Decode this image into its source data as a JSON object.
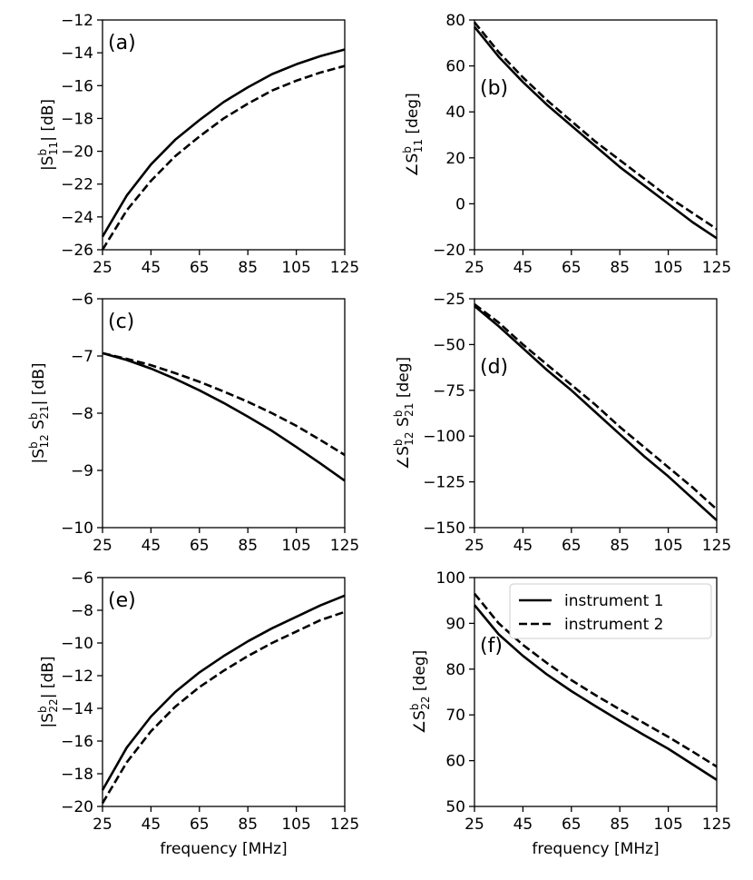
{
  "figure": {
    "background": "#ffffff",
    "line_color": "#000000"
  },
  "legend": {
    "location": "upper-right of panel (f)",
    "entries": [
      {
        "label": "instrument 1",
        "style": "solid"
      },
      {
        "label": "instrument 2",
        "style": "dashed"
      }
    ]
  },
  "chart_data": [
    {
      "type": "line",
      "panel_label": "(a)",
      "ylabel": "|S^b_11| [dB]",
      "xlabel": "",
      "xlim": [
        25,
        125
      ],
      "ylim": [
        -26,
        -12
      ],
      "xticks": [
        25,
        45,
        65,
        85,
        105,
        125
      ],
      "yticks": [
        -26,
        -24,
        -22,
        -20,
        -18,
        -16,
        -14,
        -12
      ],
      "ytick_labels": [
        "−26",
        "−24",
        "−22",
        "−20",
        "−18",
        "−16",
        "−14",
        "−12"
      ],
      "label_pos": "top-left",
      "x": [
        25,
        35,
        45,
        55,
        65,
        75,
        85,
        95,
        105,
        115,
        125
      ],
      "series": [
        {
          "name": "instrument 1",
          "style": "solid",
          "values": [
            -25.2,
            -22.7,
            -20.8,
            -19.3,
            -18.1,
            -17.0,
            -16.1,
            -15.3,
            -14.7,
            -14.2,
            -13.8
          ]
        },
        {
          "name": "instrument 2",
          "style": "dashed",
          "values": [
            -26.0,
            -23.6,
            -21.8,
            -20.3,
            -19.1,
            -18.0,
            -17.1,
            -16.3,
            -15.7,
            -15.2,
            -14.8
          ]
        }
      ]
    },
    {
      "type": "line",
      "panel_label": "(b)",
      "ylabel": "∠S^b_11 [deg]",
      "xlabel": "",
      "xlim": [
        25,
        125
      ],
      "ylim": [
        -20,
        80
      ],
      "xticks": [
        25,
        45,
        65,
        85,
        105,
        125
      ],
      "yticks": [
        -20,
        0,
        20,
        40,
        60,
        80
      ],
      "ytick_labels": [
        "−20",
        "0",
        "20",
        "40",
        "60",
        "80"
      ],
      "label_pos": "mid-left",
      "x": [
        25,
        35,
        45,
        55,
        65,
        75,
        85,
        95,
        105,
        115,
        125
      ],
      "series": [
        {
          "name": "instrument 1",
          "style": "solid",
          "values": [
            77,
            64,
            53,
            43,
            34,
            25,
            16,
            8,
            0,
            -8,
            -15
          ]
        },
        {
          "name": "instrument 2",
          "style": "dashed",
          "values": [
            79,
            66,
            55,
            45,
            36,
            27,
            19,
            11,
            3,
            -4,
            -11
          ]
        }
      ]
    },
    {
      "type": "line",
      "panel_label": "(c)",
      "ylabel": "|S^b_12 S^b_21| [dB]",
      "xlabel": "",
      "xlim": [
        25,
        125
      ],
      "ylim": [
        -10,
        -6
      ],
      "xticks": [
        25,
        45,
        65,
        85,
        105,
        125
      ],
      "yticks": [
        -10,
        -9,
        -8,
        -7,
        -6
      ],
      "ytick_labels": [
        "−10",
        "−9",
        "−8",
        "−7",
        "−6"
      ],
      "label_pos": "top-left",
      "x": [
        25,
        35,
        45,
        55,
        65,
        75,
        85,
        95,
        105,
        115,
        125
      ],
      "series": [
        {
          "name": "instrument 1",
          "style": "solid",
          "values": [
            -6.95,
            -7.07,
            -7.22,
            -7.4,
            -7.6,
            -7.82,
            -8.06,
            -8.31,
            -8.59,
            -8.88,
            -9.18
          ]
        },
        {
          "name": "instrument 2",
          "style": "dashed",
          "values": [
            -6.95,
            -7.05,
            -7.16,
            -7.3,
            -7.45,
            -7.62,
            -7.8,
            -8.0,
            -8.22,
            -8.47,
            -8.73
          ]
        }
      ]
    },
    {
      "type": "line",
      "panel_label": "(d)",
      "ylabel": "∠S^b_12 S^b_21 [deg]",
      "xlabel": "",
      "xlim": [
        25,
        125
      ],
      "ylim": [
        -150,
        -25
      ],
      "xticks": [
        25,
        45,
        65,
        85,
        105,
        125
      ],
      "yticks": [
        -150,
        -125,
        -100,
        -75,
        -50,
        -25
      ],
      "ytick_labels": [
        "−150",
        "−125",
        "−100",
        "−75",
        "−50",
        "−25"
      ],
      "label_pos": "mid-left",
      "x": [
        25,
        35,
        45,
        55,
        65,
        75,
        85,
        95,
        105,
        115,
        125
      ],
      "series": [
        {
          "name": "instrument 1",
          "style": "solid",
          "values": [
            -29,
            -40,
            -52,
            -64,
            -75,
            -87,
            -99,
            -111,
            -122,
            -134,
            -146
          ]
        },
        {
          "name": "instrument 2",
          "style": "dashed",
          "values": [
            -28,
            -38,
            -50,
            -61,
            -72,
            -83,
            -95,
            -106,
            -117,
            -128,
            -140
          ]
        }
      ]
    },
    {
      "type": "line",
      "panel_label": "(e)",
      "ylabel": "|S^b_22| [dB]",
      "xlabel": "frequency [MHz]",
      "xlim": [
        25,
        125
      ],
      "ylim": [
        -20,
        -6
      ],
      "xticks": [
        25,
        45,
        65,
        85,
        105,
        125
      ],
      "yticks": [
        -20,
        -18,
        -16,
        -14,
        -12,
        -10,
        -8,
        -6
      ],
      "ytick_labels": [
        "−20",
        "−18",
        "−16",
        "−14",
        "−12",
        "−10",
        "−8",
        "−6"
      ],
      "label_pos": "top-left",
      "x": [
        25,
        35,
        45,
        55,
        65,
        75,
        85,
        95,
        105,
        115,
        125
      ],
      "series": [
        {
          "name": "instrument 1",
          "style": "solid",
          "values": [
            -19.0,
            -16.4,
            -14.5,
            -13.0,
            -11.8,
            -10.8,
            -9.9,
            -9.1,
            -8.4,
            -7.7,
            -7.1
          ]
        },
        {
          "name": "instrument 2",
          "style": "dashed",
          "values": [
            -19.8,
            -17.3,
            -15.4,
            -13.9,
            -12.7,
            -11.7,
            -10.8,
            -10.0,
            -9.3,
            -8.6,
            -8.1
          ]
        }
      ]
    },
    {
      "type": "line",
      "panel_label": "(f)",
      "ylabel": "∠S^b_22 [deg]",
      "xlabel": "frequency [MHz]",
      "xlim": [
        25,
        125
      ],
      "ylim": [
        50,
        100
      ],
      "xticks": [
        25,
        45,
        65,
        85,
        105,
        125
      ],
      "yticks": [
        50,
        60,
        70,
        80,
        90,
        100
      ],
      "ytick_labels": [
        "50",
        "60",
        "70",
        "80",
        "90",
        "100"
      ],
      "label_pos": "mid-left",
      "x": [
        25,
        35,
        45,
        55,
        65,
        75,
        85,
        95,
        105,
        115,
        125
      ],
      "series": [
        {
          "name": "instrument 1",
          "style": "solid",
          "values": [
            94.0,
            87.6,
            82.9,
            78.8,
            75.2,
            71.9,
            68.7,
            65.6,
            62.6,
            59.2,
            55.8
          ]
        },
        {
          "name": "instrument 2",
          "style": "dashed",
          "values": [
            96.5,
            90.0,
            85.3,
            81.3,
            77.6,
            74.3,
            71.2,
            68.2,
            65.2,
            62.0,
            58.7
          ]
        }
      ]
    }
  ]
}
